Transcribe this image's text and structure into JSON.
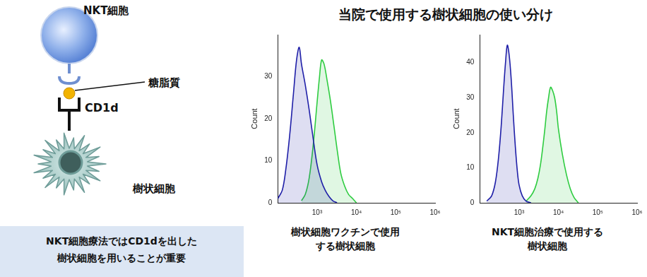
{
  "title": "当院で使用する樹状細胞の使い分け",
  "diagram": {
    "labels": [
      "NKT細胞",
      "糖脂質",
      "CD1d",
      "樹状細胞"
    ],
    "note": [
      "NKT細胞療法ではCD1dを出した",
      "樹状細胞を用いることが重要"
    ]
  },
  "chart_data": [
    {
      "type": "line",
      "caption": [
        "樹状細胞ワクチンで使用",
        "する樹状細胞"
      ],
      "ylabel": "Count",
      "log": "x",
      "grid": false,
      "xlim": [
        100,
        1000000
      ],
      "xticks": [
        {
          "value": 1000,
          "label": "10³"
        },
        {
          "value": 10000,
          "label": "10⁴"
        },
        {
          "value": 100000,
          "label": "10⁵"
        },
        {
          "value": 1000000,
          "label": "10⁶"
        }
      ],
      "ylim": [
        0,
        40
      ],
      "yticks": [
        0,
        10,
        20,
        30
      ],
      "series": [
        {
          "color": "#1f1fa8",
          "x": [
            100,
            130,
            160,
            200,
            250,
            300,
            350,
            400,
            500,
            630,
            800,
            1000,
            1300,
            1600,
            2000,
            2500,
            3200
          ],
          "values": [
            1,
            3,
            8,
            16,
            26,
            34,
            37,
            33,
            28,
            22,
            15,
            9,
            5,
            3,
            1.5,
            0.5,
            0
          ]
        },
        {
          "color": "#2ecc40",
          "x": [
            400,
            500,
            630,
            800,
            1000,
            1150,
            1300,
            1500,
            1800,
            2200,
            2700,
            3300,
            4000,
            5000,
            6300,
            8000,
            10000
          ],
          "values": [
            0.5,
            2,
            6,
            14,
            24,
            30,
            34,
            33,
            29,
            24,
            18,
            12,
            7,
            4,
            2,
            1,
            0
          ]
        }
      ]
    },
    {
      "type": "line",
      "caption": [
        "NKT細胞治療で使用する",
        "樹状細胞"
      ],
      "ylabel": "Count",
      "log": "x",
      "grid": false,
      "xlim": [
        100,
        1000000
      ],
      "xticks": [
        {
          "value": 1000,
          "label": "10³"
        },
        {
          "value": 10000,
          "label": "10⁴"
        },
        {
          "value": 100000,
          "label": "10⁵"
        },
        {
          "value": 1000000,
          "label": "10⁶"
        }
      ],
      "ylim": [
        0,
        48
      ],
      "yticks": [
        0,
        10,
        20,
        30,
        40
      ],
      "series": [
        {
          "color": "#1f1fa8",
          "x": [
            150,
            200,
            250,
            300,
            350,
            400,
            450,
            500,
            560,
            630,
            710,
            800,
            900,
            1000,
            1200,
            1500,
            2000
          ],
          "values": [
            0.5,
            2,
            6,
            13,
            22,
            32,
            40,
            45,
            42,
            35,
            25,
            16,
            9,
            5,
            2,
            0.5,
            0
          ]
        },
        {
          "color": "#2ecc40",
          "x": [
            1500,
            2000,
            2500,
            3000,
            3500,
            4000,
            4500,
            5000,
            5600,
            6300,
            7100,
            8000,
            9000,
            10000,
            12500,
            16000,
            20000,
            25000,
            32000
          ],
          "values": [
            0.5,
            2,
            4,
            7,
            11,
            16,
            21,
            26,
            30,
            33,
            32,
            30,
            26,
            21,
            14,
            8,
            4,
            1.5,
            0
          ]
        }
      ]
    }
  ]
}
